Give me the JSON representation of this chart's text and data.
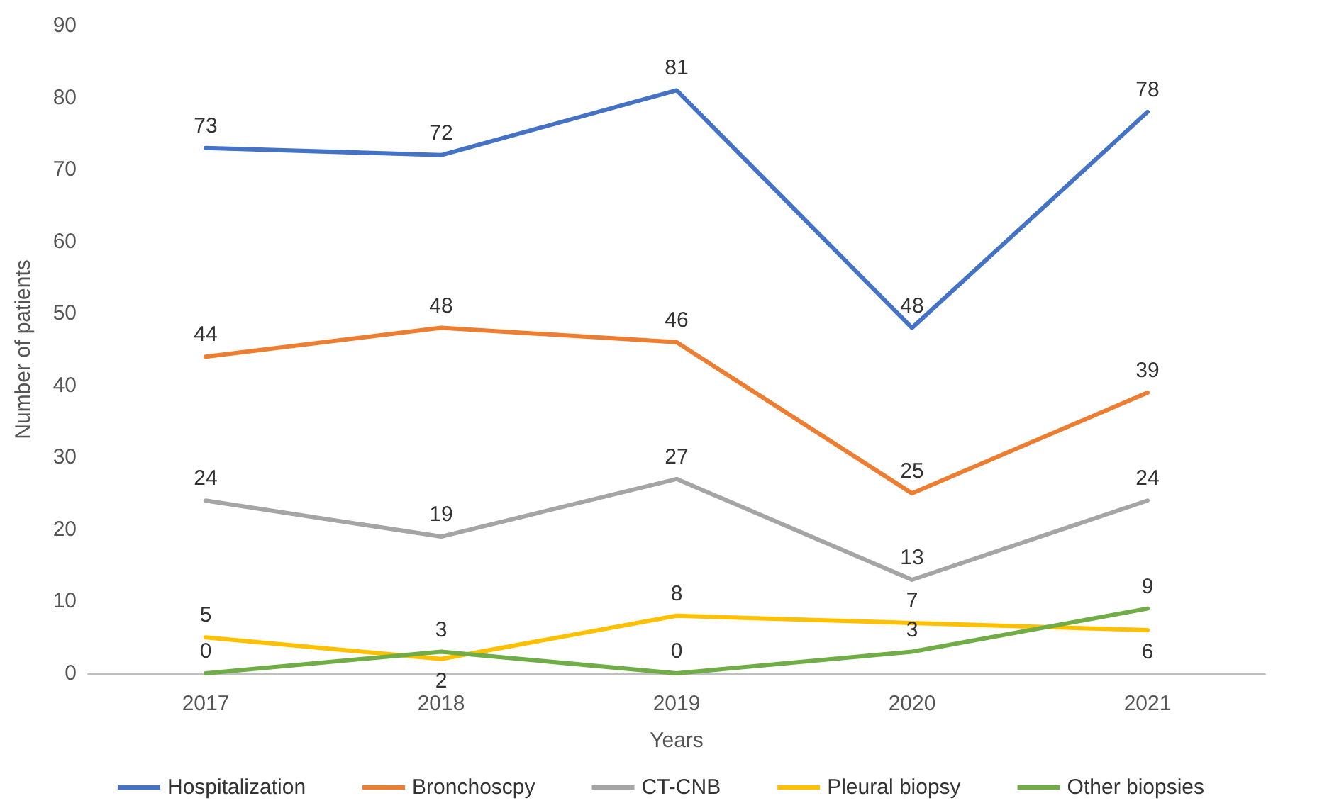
{
  "chart_data": {
    "type": "line",
    "xlabel": "Years",
    "ylabel": "Number of patients",
    "categories": [
      "2017",
      "2018",
      "2019",
      "2020",
      "2021"
    ],
    "series": [
      {
        "name": "Hospitalization",
        "color": "#4472c4",
        "values": [
          73,
          72,
          81,
          48,
          78
        ]
      },
      {
        "name": "Bronchoscpy",
        "color": "#ed7d31",
        "values": [
          44,
          48,
          46,
          25,
          39
        ]
      },
      {
        "name": "CT-CNB",
        "color": "#a5a5a5",
        "values": [
          24,
          19,
          27,
          13,
          24
        ]
      },
      {
        "name": "Pleural biopsy",
        "color": "#ffc000",
        "values": [
          5,
          2,
          8,
          7,
          6
        ]
      },
      {
        "name": "Other biopsies",
        "color": "#70ad47",
        "values": [
          0,
          3,
          0,
          3,
          9
        ]
      }
    ],
    "ylim": [
      0,
      90
    ],
    "yticks": [
      0,
      10,
      20,
      30,
      40,
      50,
      60,
      70,
      80,
      90
    ],
    "grid": false,
    "legend": "bottom",
    "marker": "none",
    "line_style": "solid",
    "data_labels": true
  }
}
